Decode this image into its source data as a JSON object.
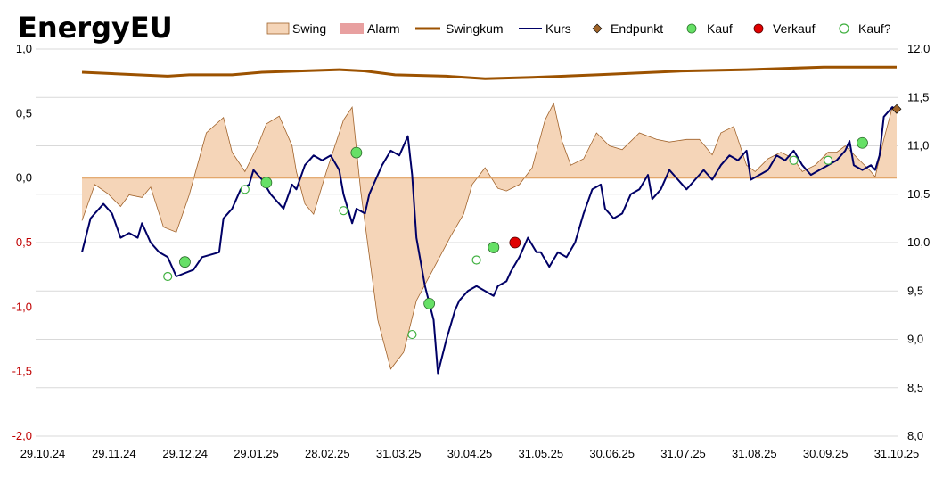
{
  "chart_data": {
    "type": "line",
    "title": "EnergyEU",
    "x_labels": [
      "29.10.24",
      "29.11.24",
      "29.12.24",
      "29.01.25",
      "28.02.25",
      "31.03.25",
      "30.04.25",
      "31.05.25",
      "30.06.25",
      "31.07.25",
      "31.08.25",
      "30.09.25",
      "31.10.25"
    ],
    "y_left": {
      "min": -2.0,
      "max": 1.0,
      "ticks": [
        "1,0",
        "0,5",
        "0,0",
        "-0,5",
        "-1,0",
        "-1,5",
        "-2,0"
      ]
    },
    "y_right": {
      "min": 8.0,
      "max": 12.0,
      "ticks": [
        "12,0",
        "11,5",
        "11,0",
        "10,5",
        "10,0",
        "9,5",
        "9,0",
        "8,5",
        "8,0"
      ]
    },
    "legend": {
      "swing": "Swing",
      "alarm": "Alarm",
      "swingkum": "Swingkum",
      "kurs": "Kurs",
      "endpunkt": "Endpunkt",
      "kauf": "Kauf",
      "verkauf": "Verkauf",
      "kauf_q": "Kauf?"
    },
    "colors": {
      "swing_fill": "#f5d5b8",
      "swing_line": "#a0622a",
      "alarm": "#e8a0a0",
      "swingkum": "#9c5200",
      "kurs": "#000066",
      "endpunkt": "#a06428",
      "kauf": "#66e066",
      "verkauf": "#e00000",
      "kauf_q": "#ffffff",
      "zero_line": "#e0a060",
      "grid": "#d9d9d9"
    },
    "series": {
      "swing": {
        "axis": "left",
        "points": [
          [
            0,
            -0.33
          ],
          [
            0.03,
            -0.05
          ],
          [
            0.06,
            -0.12
          ],
          [
            0.09,
            -0.22
          ],
          [
            0.11,
            -0.13
          ],
          [
            0.14,
            -0.15
          ],
          [
            0.16,
            -0.07
          ],
          [
            0.19,
            -0.38
          ],
          [
            0.22,
            -0.42
          ],
          [
            0.25,
            -0.13
          ],
          [
            0.29,
            0.35
          ],
          [
            0.33,
            0.47
          ],
          [
            0.35,
            0.2
          ],
          [
            0.38,
            0.05
          ],
          [
            0.41,
            0.25
          ],
          [
            0.43,
            0.42
          ],
          [
            0.46,
            0.48
          ],
          [
            0.49,
            0.25
          ],
          [
            0.5,
            0.05
          ],
          [
            0.52,
            -0.2
          ],
          [
            0.54,
            -0.28
          ],
          [
            0.57,
            0.05
          ],
          [
            0.61,
            0.45
          ],
          [
            0.63,
            0.55
          ],
          [
            0.65,
            -0.1
          ],
          [
            0.69,
            -1.1
          ],
          [
            0.72,
            -1.48
          ],
          [
            0.75,
            -1.35
          ],
          [
            0.78,
            -0.95
          ],
          [
            0.82,
            -0.7
          ],
          [
            0.86,
            -0.45
          ],
          [
            0.89,
            -0.28
          ],
          [
            0.91,
            -0.05
          ],
          [
            0.94,
            0.08
          ],
          [
            0.97,
            -0.08
          ],
          [
            0.99,
            -0.1
          ],
          [
            1.02,
            -0.05
          ],
          [
            1.05,
            0.08
          ],
          [
            1.08,
            0.45
          ],
          [
            1.1,
            0.58
          ],
          [
            1.12,
            0.28
          ],
          [
            1.14,
            0.1
          ],
          [
            1.17,
            0.15
          ],
          [
            1.2,
            0.35
          ],
          [
            1.23,
            0.25
          ],
          [
            1.26,
            0.22
          ],
          [
            1.3,
            0.35
          ],
          [
            1.34,
            0.3
          ],
          [
            1.37,
            0.28
          ],
          [
            1.41,
            0.3
          ],
          [
            1.44,
            0.3
          ],
          [
            1.47,
            0.18
          ],
          [
            1.49,
            0.35
          ],
          [
            1.52,
            0.4
          ],
          [
            1.55,
            0.1
          ],
          [
            1.57,
            0.05
          ],
          [
            1.6,
            0.15
          ],
          [
            1.63,
            0.2
          ],
          [
            1.66,
            0.15
          ],
          [
            1.68,
            0.05
          ],
          [
            1.71,
            0.1
          ],
          [
            1.74,
            0.2
          ],
          [
            1.76,
            0.2
          ],
          [
            1.78,
            0.25
          ],
          [
            1.81,
            0.15
          ],
          [
            1.84,
            0.05
          ],
          [
            1.85,
            0.01
          ],
          [
            1.87,
            0.3
          ],
          [
            1.89,
            0.55
          ],
          [
            1.9,
            0.55
          ]
        ]
      },
      "swingkum": {
        "axis": "left",
        "points": [
          [
            0,
            0.82
          ],
          [
            0.2,
            0.79
          ],
          [
            0.25,
            0.8
          ],
          [
            0.35,
            0.8
          ],
          [
            0.42,
            0.82
          ],
          [
            0.6,
            0.84
          ],
          [
            0.66,
            0.83
          ],
          [
            0.73,
            0.8
          ],
          [
            0.85,
            0.79
          ],
          [
            0.94,
            0.77
          ],
          [
            1.05,
            0.78
          ],
          [
            1.2,
            0.8
          ],
          [
            1.4,
            0.83
          ],
          [
            1.55,
            0.84
          ],
          [
            1.73,
            0.86
          ],
          [
            1.8,
            0.86
          ],
          [
            1.9,
            0.86
          ]
        ]
      },
      "kurs": {
        "axis": "right",
        "points": [
          [
            0,
            9.9
          ],
          [
            0.02,
            10.25
          ],
          [
            0.03,
            10.3
          ],
          [
            0.05,
            10.4
          ],
          [
            0.07,
            10.3
          ],
          [
            0.09,
            10.05
          ],
          [
            0.11,
            10.1
          ],
          [
            0.13,
            10.05
          ],
          [
            0.14,
            10.2
          ],
          [
            0.16,
            10.0
          ],
          [
            0.18,
            9.9
          ],
          [
            0.2,
            9.85
          ],
          [
            0.22,
            9.65
          ],
          [
            0.26,
            9.72
          ],
          [
            0.28,
            9.85
          ],
          [
            0.32,
            9.9
          ],
          [
            0.33,
            10.25
          ],
          [
            0.34,
            10.3
          ],
          [
            0.35,
            10.35
          ],
          [
            0.36,
            10.45
          ],
          [
            0.37,
            10.55
          ],
          [
            0.39,
            10.6
          ],
          [
            0.4,
            10.75
          ],
          [
            0.42,
            10.65
          ],
          [
            0.44,
            10.5
          ],
          [
            0.47,
            10.35
          ],
          [
            0.49,
            10.6
          ],
          [
            0.5,
            10.55
          ],
          [
            0.52,
            10.8
          ],
          [
            0.54,
            10.9
          ],
          [
            0.56,
            10.85
          ],
          [
            0.58,
            10.9
          ],
          [
            0.6,
            10.75
          ],
          [
            0.61,
            10.5
          ],
          [
            0.63,
            10.2
          ],
          [
            0.64,
            10.35
          ],
          [
            0.66,
            10.3
          ],
          [
            0.67,
            10.5
          ],
          [
            0.68,
            10.6
          ],
          [
            0.7,
            10.8
          ],
          [
            0.72,
            10.95
          ],
          [
            0.74,
            10.9
          ],
          [
            0.76,
            11.1
          ],
          [
            0.77,
            10.7
          ],
          [
            0.78,
            10.05
          ],
          [
            0.8,
            9.55
          ],
          [
            0.82,
            9.2
          ],
          [
            0.83,
            8.65
          ],
          [
            0.85,
            9.0
          ],
          [
            0.87,
            9.3
          ],
          [
            0.88,
            9.4
          ],
          [
            0.9,
            9.5
          ],
          [
            0.92,
            9.55
          ],
          [
            0.94,
            9.5
          ],
          [
            0.96,
            9.45
          ],
          [
            0.97,
            9.55
          ],
          [
            0.99,
            9.6
          ],
          [
            1.0,
            9.7
          ],
          [
            1.02,
            9.85
          ],
          [
            1.04,
            10.05
          ],
          [
            1.06,
            9.9
          ],
          [
            1.07,
            9.9
          ],
          [
            1.09,
            9.75
          ],
          [
            1.11,
            9.9
          ],
          [
            1.13,
            9.85
          ],
          [
            1.15,
            10.0
          ],
          [
            1.17,
            10.3
          ],
          [
            1.19,
            10.55
          ],
          [
            1.21,
            10.6
          ],
          [
            1.22,
            10.35
          ],
          [
            1.24,
            10.25
          ],
          [
            1.26,
            10.3
          ],
          [
            1.28,
            10.5
          ],
          [
            1.3,
            10.55
          ],
          [
            1.32,
            10.7
          ],
          [
            1.33,
            10.45
          ],
          [
            1.35,
            10.55
          ],
          [
            1.37,
            10.75
          ],
          [
            1.39,
            10.65
          ],
          [
            1.41,
            10.55
          ],
          [
            1.43,
            10.65
          ],
          [
            1.45,
            10.75
          ],
          [
            1.47,
            10.65
          ],
          [
            1.49,
            10.8
          ],
          [
            1.51,
            10.9
          ],
          [
            1.53,
            10.85
          ],
          [
            1.55,
            10.95
          ],
          [
            1.56,
            10.65
          ],
          [
            1.58,
            10.7
          ],
          [
            1.6,
            10.75
          ],
          [
            1.62,
            10.9
          ],
          [
            1.64,
            10.85
          ],
          [
            1.66,
            10.95
          ],
          [
            1.68,
            10.8
          ],
          [
            1.7,
            10.7
          ],
          [
            1.72,
            10.75
          ],
          [
            1.74,
            10.8
          ],
          [
            1.76,
            10.85
          ],
          [
            1.78,
            10.95
          ],
          [
            1.79,
            11.05
          ],
          [
            1.8,
            10.8
          ],
          [
            1.82,
            10.75
          ],
          [
            1.84,
            10.8
          ],
          [
            1.85,
            10.75
          ],
          [
            1.86,
            10.9
          ],
          [
            1.87,
            11.3
          ],
          [
            1.88,
            11.35
          ],
          [
            1.89,
            11.4
          ],
          [
            1.9,
            11.35
          ]
        ]
      },
      "endpunkt": {
        "axis": "right",
        "points": [
          [
            1.9,
            11.38
          ]
        ]
      },
      "kauf": {
        "axis": "right",
        "points": [
          [
            0.24,
            9.8
          ],
          [
            0.43,
            10.62
          ],
          [
            0.64,
            10.93
          ],
          [
            0.81,
            9.37
          ],
          [
            0.96,
            9.95
          ],
          [
            1.82,
            11.03
          ]
        ]
      },
      "verkauf": {
        "axis": "right",
        "points": [
          [
            1.01,
            10.0
          ]
        ]
      },
      "kauf_q": {
        "axis": "right",
        "points": [
          [
            0.2,
            9.65
          ],
          [
            0.38,
            10.55
          ],
          [
            0.61,
            10.33
          ],
          [
            0.77,
            9.05
          ],
          [
            0.92,
            9.82
          ],
          [
            1.66,
            10.85
          ],
          [
            1.74,
            10.85
          ]
        ]
      }
    }
  }
}
